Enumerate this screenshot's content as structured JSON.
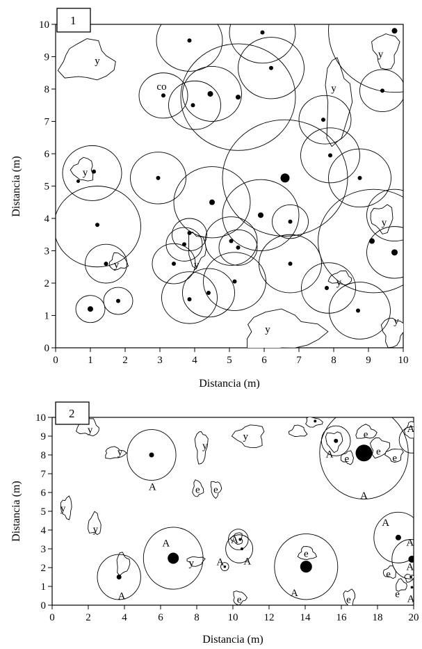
{
  "chart_data": [
    {
      "type": "scatter",
      "panel_label": "1",
      "xlabel": "Distancia (m)",
      "ylabel": "Distancia (m)",
      "xlim": [
        0,
        10
      ],
      "ylim": [
        0,
        10
      ],
      "xticks": [
        0,
        1,
        2,
        3,
        4,
        5,
        6,
        7,
        8,
        9,
        10
      ],
      "yticks": [
        0,
        1,
        2,
        3,
        4,
        5,
        6,
        7,
        8,
        9,
        10
      ],
      "circles": [
        {
          "x": 1.0,
          "y": 1.2,
          "r": 0.42
        },
        {
          "x": 1.8,
          "y": 1.45,
          "r": 0.42
        },
        {
          "x": 1.45,
          "y": 2.6,
          "r": 0.6
        },
        {
          "x": 1.2,
          "y": 3.75,
          "r": 1.25
        },
        {
          "x": 1.05,
          "y": 5.4,
          "r": 0.85
        },
        {
          "x": 2.95,
          "y": 5.25,
          "r": 0.8
        },
        {
          "x": 3.4,
          "y": 2.6,
          "r": 0.62
        },
        {
          "x": 3.7,
          "y": 3.2,
          "r": 0.52
        },
        {
          "x": 3.85,
          "y": 3.5,
          "r": 0.5
        },
        {
          "x": 3.85,
          "y": 1.55,
          "r": 0.8
        },
        {
          "x": 4.4,
          "y": 1.7,
          "r": 0.75
        },
        {
          "x": 5.15,
          "y": 2.05,
          "r": 0.9
        },
        {
          "x": 5.05,
          "y": 3.3,
          "r": 0.75
        },
        {
          "x": 5.25,
          "y": 3.1,
          "r": 0.55
        },
        {
          "x": 4.5,
          "y": 4.5,
          "r": 1.1
        },
        {
          "x": 5.9,
          "y": 4.1,
          "r": 1.1
        },
        {
          "x": 6.6,
          "y": 5.25,
          "r": 1.8
        },
        {
          "x": 6.75,
          "y": 3.9,
          "r": 0.52
        },
        {
          "x": 6.75,
          "y": 2.6,
          "r": 0.9
        },
        {
          "x": 7.75,
          "y": 7.05,
          "r": 0.75
        },
        {
          "x": 7.9,
          "y": 5.95,
          "r": 0.85
        },
        {
          "x": 8.75,
          "y": 5.25,
          "r": 0.9
        },
        {
          "x": 7.85,
          "y": 1.85,
          "r": 0.78
        },
        {
          "x": 8.75,
          "y": 1.15,
          "r": 0.88
        },
        {
          "x": 9.15,
          "y": 3.3,
          "r": 1.6
        },
        {
          "x": 9.75,
          "y": 2.95,
          "r": 0.8
        },
        {
          "x": 9.75,
          "y": 4.1,
          "r": 0.8
        },
        {
          "x": 9.4,
          "y": 7.95,
          "r": 0.65
        },
        {
          "x": 9.75,
          "y": 9.8,
          "r": 1.9
        },
        {
          "x": 6.2,
          "y": 8.65,
          "r": 0.95
        },
        {
          "x": 5.95,
          "y": 9.75,
          "r": 0.95
        },
        {
          "x": 5.25,
          "y": 7.75,
          "r": 1.65
        },
        {
          "x": 4.5,
          "y": 7.85,
          "r": 0.85
        },
        {
          "x": 4.0,
          "y": 7.5,
          "r": 0.75
        },
        {
          "x": 3.1,
          "y": 7.8,
          "r": 0.7
        },
        {
          "x": 3.85,
          "y": 9.5,
          "r": 0.95
        }
      ],
      "points": [
        {
          "x": 1.0,
          "y": 1.2,
          "s": 4
        },
        {
          "x": 1.8,
          "y": 1.45,
          "s": 3
        },
        {
          "x": 1.45,
          "y": 2.6,
          "s": 3
        },
        {
          "x": 1.2,
          "y": 3.8,
          "s": 3
        },
        {
          "x": 1.1,
          "y": 5.45,
          "s": 3
        },
        {
          "x": 0.65,
          "y": 5.15,
          "s": 2.5
        },
        {
          "x": 2.95,
          "y": 5.25,
          "s": 3
        },
        {
          "x": 3.4,
          "y": 2.6,
          "s": 3
        },
        {
          "x": 3.7,
          "y": 3.2,
          "s": 3
        },
        {
          "x": 3.85,
          "y": 3.55,
          "s": 3
        },
        {
          "x": 3.85,
          "y": 1.5,
          "s": 3
        },
        {
          "x": 4.4,
          "y": 1.7,
          "s": 3
        },
        {
          "x": 5.15,
          "y": 2.05,
          "s": 3
        },
        {
          "x": 5.05,
          "y": 3.3,
          "s": 3
        },
        {
          "x": 5.25,
          "y": 3.1,
          "s": 3
        },
        {
          "x": 4.5,
          "y": 4.5,
          "s": 4
        },
        {
          "x": 5.9,
          "y": 4.1,
          "s": 4
        },
        {
          "x": 6.6,
          "y": 5.25,
          "s": 6.5
        },
        {
          "x": 6.75,
          "y": 3.9,
          "s": 3
        },
        {
          "x": 6.75,
          "y": 2.6,
          "s": 3
        },
        {
          "x": 7.7,
          "y": 7.05,
          "s": 3
        },
        {
          "x": 7.9,
          "y": 5.95,
          "s": 3
        },
        {
          "x": 8.75,
          "y": 5.25,
          "s": 3
        },
        {
          "x": 7.8,
          "y": 1.85,
          "s": 3
        },
        {
          "x": 8.7,
          "y": 1.15,
          "s": 3
        },
        {
          "x": 9.1,
          "y": 3.3,
          "s": 4
        },
        {
          "x": 9.75,
          "y": 2.95,
          "s": 4.5
        },
        {
          "x": 9.4,
          "y": 7.95,
          "s": 3
        },
        {
          "x": 9.75,
          "y": 9.8,
          "s": 4
        },
        {
          "x": 6.2,
          "y": 8.65,
          "s": 3
        },
        {
          "x": 5.95,
          "y": 9.75,
          "s": 3
        },
        {
          "x": 5.25,
          "y": 7.75,
          "s": 3.5
        },
        {
          "x": 4.45,
          "y": 7.85,
          "s": 4
        },
        {
          "x": 3.95,
          "y": 7.5,
          "s": 3
        },
        {
          "x": 3.1,
          "y": 7.8,
          "s": 3
        },
        {
          "x": 3.85,
          "y": 9.5,
          "s": 3
        }
      ],
      "patches": [
        {
          "cx": 0.9,
          "cy": 8.85,
          "rx": 0.75,
          "ry": 0.6
        },
        {
          "cx": 8.1,
          "cy": 7.6,
          "rx": 0.35,
          "ry": 1.3
        },
        {
          "cx": 9.5,
          "cy": 9.2,
          "rx": 0.35,
          "ry": 0.55
        },
        {
          "cx": 0.8,
          "cy": 5.5,
          "rx": 0.3,
          "ry": 0.35
        },
        {
          "cx": 1.8,
          "cy": 2.65,
          "rx": 0.25,
          "ry": 0.25
        },
        {
          "cx": 4.05,
          "cy": 3.05,
          "rx": 0.25,
          "ry": 0.5
        },
        {
          "cx": 9.4,
          "cy": 4.0,
          "rx": 0.32,
          "ry": 0.4
        },
        {
          "cx": 8.2,
          "cy": 2.15,
          "rx": 0.32,
          "ry": 0.2
        },
        {
          "cx": 6.5,
          "cy": 0.5,
          "rx": 1.1,
          "ry": 0.6
        },
        {
          "cx": 9.7,
          "cy": 0.5,
          "rx": 0.3,
          "ry": 0.45
        }
      ],
      "labels": [
        {
          "text": "y",
          "x": 1.2,
          "y": 8.85
        },
        {
          "text": "co",
          "x": 3.05,
          "y": 8.05
        },
        {
          "text": "y",
          "x": 9.35,
          "y": 9.05
        },
        {
          "text": "y",
          "x": 8.0,
          "y": 8.0
        },
        {
          "text": "y",
          "x": 0.85,
          "y": 5.4
        },
        {
          "text": "y",
          "x": 1.75,
          "y": 2.55
        },
        {
          "text": "y",
          "x": 4.05,
          "y": 2.55
        },
        {
          "text": "y",
          "x": 9.45,
          "y": 3.85
        },
        {
          "text": "y",
          "x": 8.15,
          "y": 2.0
        },
        {
          "text": "y",
          "x": 6.1,
          "y": 0.55
        },
        {
          "text": "y",
          "x": 9.8,
          "y": 0.8
        }
      ]
    },
    {
      "type": "scatter",
      "panel_label": "2",
      "xlabel": "Distancia (m)",
      "ylabel": "Distancia (m)",
      "xlim": [
        0,
        20
      ],
      "ylim": [
        0,
        10
      ],
      "xticks": [
        0,
        2,
        4,
        6,
        8,
        10,
        12,
        14,
        16,
        18,
        20
      ],
      "yticks": [
        0,
        1,
        2,
        3,
        4,
        5,
        6,
        7,
        8,
        9,
        10
      ],
      "circles": [
        {
          "x": 5.5,
          "y": 8.0,
          "r": 1.35
        },
        {
          "x": 3.7,
          "y": 1.5,
          "r": 1.2
        },
        {
          "x": 6.7,
          "y": 2.5,
          "r": 1.65
        },
        {
          "x": 10.3,
          "y": 3.5,
          "r": 0.55
        },
        {
          "x": 10.35,
          "y": 3.0,
          "r": 0.75
        },
        {
          "x": 9.55,
          "y": 2.05,
          "r": 0.22
        },
        {
          "x": 14.05,
          "y": 2.05,
          "r": 1.75
        },
        {
          "x": 15.7,
          "y": 8.75,
          "r": 0.8
        },
        {
          "x": 17.25,
          "y": 8.1,
          "r": 2.45
        },
        {
          "x": 19.9,
          "y": 8.8,
          "r": 0.7
        },
        {
          "x": 19.15,
          "y": 3.6,
          "r": 1.35
        },
        {
          "x": 19.85,
          "y": 2.45,
          "r": 1.05
        }
      ],
      "points": [
        {
          "x": 5.5,
          "y": 8.0,
          "s": 3.5
        },
        {
          "x": 3.7,
          "y": 1.5,
          "s": 3.5
        },
        {
          "x": 6.7,
          "y": 2.5,
          "s": 8
        },
        {
          "x": 10.4,
          "y": 3.5,
          "s": 2
        },
        {
          "x": 10.5,
          "y": 3.0,
          "s": 2
        },
        {
          "x": 9.55,
          "y": 2.05,
          "s": 1.8
        },
        {
          "x": 14.05,
          "y": 2.05,
          "s": 8.5
        },
        {
          "x": 15.7,
          "y": 8.75,
          "s": 3
        },
        {
          "x": 17.25,
          "y": 8.1,
          "s": 12
        },
        {
          "x": 19.15,
          "y": 3.6,
          "s": 4
        },
        {
          "x": 19.9,
          "y": 2.45,
          "s": 5
        },
        {
          "x": 14.55,
          "y": 9.8,
          "s": 2
        },
        {
          "x": 19.85,
          "y": 1.5,
          "s": 1.8
        },
        {
          "x": 19.9,
          "y": 0.95,
          "s": 1.8
        }
      ],
      "patches": [
        {
          "cx": 2.0,
          "cy": 9.45,
          "rx": 0.6,
          "ry": 0.42
        },
        {
          "cx": 3.45,
          "cy": 8.1,
          "rx": 0.55,
          "ry": 0.3
        },
        {
          "cx": 8.25,
          "cy": 8.45,
          "rx": 0.32,
          "ry": 0.85
        },
        {
          "cx": 10.95,
          "cy": 9.0,
          "rx": 0.8,
          "ry": 0.6
        },
        {
          "cx": 13.6,
          "cy": 9.25,
          "rx": 0.45,
          "ry": 0.3
        },
        {
          "cx": 14.45,
          "cy": 9.75,
          "rx": 0.45,
          "ry": 0.25
        },
        {
          "cx": 15.6,
          "cy": 8.75,
          "rx": 0.45,
          "ry": 0.5
        },
        {
          "cx": 16.35,
          "cy": 7.85,
          "rx": 0.35,
          "ry": 0.32
        },
        {
          "cx": 17.35,
          "cy": 9.2,
          "rx": 0.55,
          "ry": 0.35
        },
        {
          "cx": 18.1,
          "cy": 8.4,
          "rx": 0.5,
          "ry": 0.5
        },
        {
          "cx": 18.95,
          "cy": 8.0,
          "rx": 0.45,
          "ry": 0.35
        },
        {
          "cx": 19.85,
          "cy": 9.3,
          "rx": 0.3,
          "ry": 0.45
        },
        {
          "cx": 8.05,
          "cy": 6.2,
          "rx": 0.28,
          "ry": 0.42
        },
        {
          "cx": 9.05,
          "cy": 6.2,
          "rx": 0.28,
          "ry": 0.42
        },
        {
          "cx": 0.8,
          "cy": 5.2,
          "rx": 0.3,
          "ry": 0.55
        },
        {
          "cx": 2.35,
          "cy": 4.3,
          "rx": 0.35,
          "ry": 0.55
        },
        {
          "cx": 3.9,
          "cy": 2.2,
          "rx": 0.35,
          "ry": 0.55
        },
        {
          "cx": 7.95,
          "cy": 2.35,
          "rx": 0.45,
          "ry": 0.25
        },
        {
          "cx": 10.25,
          "cy": 3.55,
          "rx": 0.3,
          "ry": 0.3
        },
        {
          "cx": 14.1,
          "cy": 2.75,
          "rx": 0.45,
          "ry": 0.35
        },
        {
          "cx": 10.35,
          "cy": 0.4,
          "rx": 0.35,
          "ry": 0.35
        },
        {
          "cx": 16.45,
          "cy": 0.4,
          "rx": 0.3,
          "ry": 0.45
        },
        {
          "cx": 18.7,
          "cy": 1.75,
          "rx": 0.35,
          "ry": 0.3
        },
        {
          "cx": 19.3,
          "cy": 1.05,
          "rx": 0.3,
          "ry": 0.3
        },
        {
          "cx": 19.75,
          "cy": 1.45,
          "rx": 0.25,
          "ry": 0.2
        }
      ],
      "labels": [
        {
          "text": "y",
          "x": 2.1,
          "y": 9.3
        },
        {
          "text": "y",
          "x": 3.75,
          "y": 8.1
        },
        {
          "text": "A",
          "x": 5.55,
          "y": 6.25
        },
        {
          "text": "y",
          "x": 8.45,
          "y": 8.45
        },
        {
          "text": "y",
          "x": 10.7,
          "y": 8.95
        },
        {
          "text": "e",
          "x": 8.05,
          "y": 6.1
        },
        {
          "text": "e",
          "x": 9.05,
          "y": 6.1
        },
        {
          "text": "y",
          "x": 0.6,
          "y": 5.1
        },
        {
          "text": "y",
          "x": 2.4,
          "y": 4.0
        },
        {
          "text": "A",
          "x": 3.85,
          "y": 0.45
        },
        {
          "text": "A",
          "x": 6.3,
          "y": 3.25
        },
        {
          "text": "y",
          "x": 7.7,
          "y": 2.2
        },
        {
          "text": "A",
          "x": 9.3,
          "y": 2.25
        },
        {
          "text": "A",
          "x": 10.1,
          "y": 3.45
        },
        {
          "text": "A",
          "x": 10.8,
          "y": 2.3
        },
        {
          "text": "e",
          "x": 14.05,
          "y": 2.7
        },
        {
          "text": "A",
          "x": 13.4,
          "y": 0.6
        },
        {
          "text": "e",
          "x": 10.35,
          "y": 0.25
        },
        {
          "text": "e",
          "x": 16.4,
          "y": 0.25
        },
        {
          "text": "A",
          "x": 15.35,
          "y": 8.0
        },
        {
          "text": "e",
          "x": 16.3,
          "y": 7.75
        },
        {
          "text": "e",
          "x": 17.35,
          "y": 9.05
        },
        {
          "text": "e",
          "x": 18.05,
          "y": 8.15
        },
        {
          "text": "e",
          "x": 18.95,
          "y": 7.8
        },
        {
          "text": "A",
          "x": 19.85,
          "y": 9.35
        },
        {
          "text": "A",
          "x": 17.25,
          "y": 5.8
        },
        {
          "text": "A",
          "x": 18.45,
          "y": 4.35
        },
        {
          "text": "A",
          "x": 19.8,
          "y": 3.3
        },
        {
          "text": "A",
          "x": 19.8,
          "y": 2.0
        },
        {
          "text": "A",
          "x": 19.85,
          "y": 0.3
        },
        {
          "text": "e",
          "x": 18.6,
          "y": 1.6
        },
        {
          "text": "e",
          "x": 19.1,
          "y": 0.55
        }
      ]
    }
  ]
}
